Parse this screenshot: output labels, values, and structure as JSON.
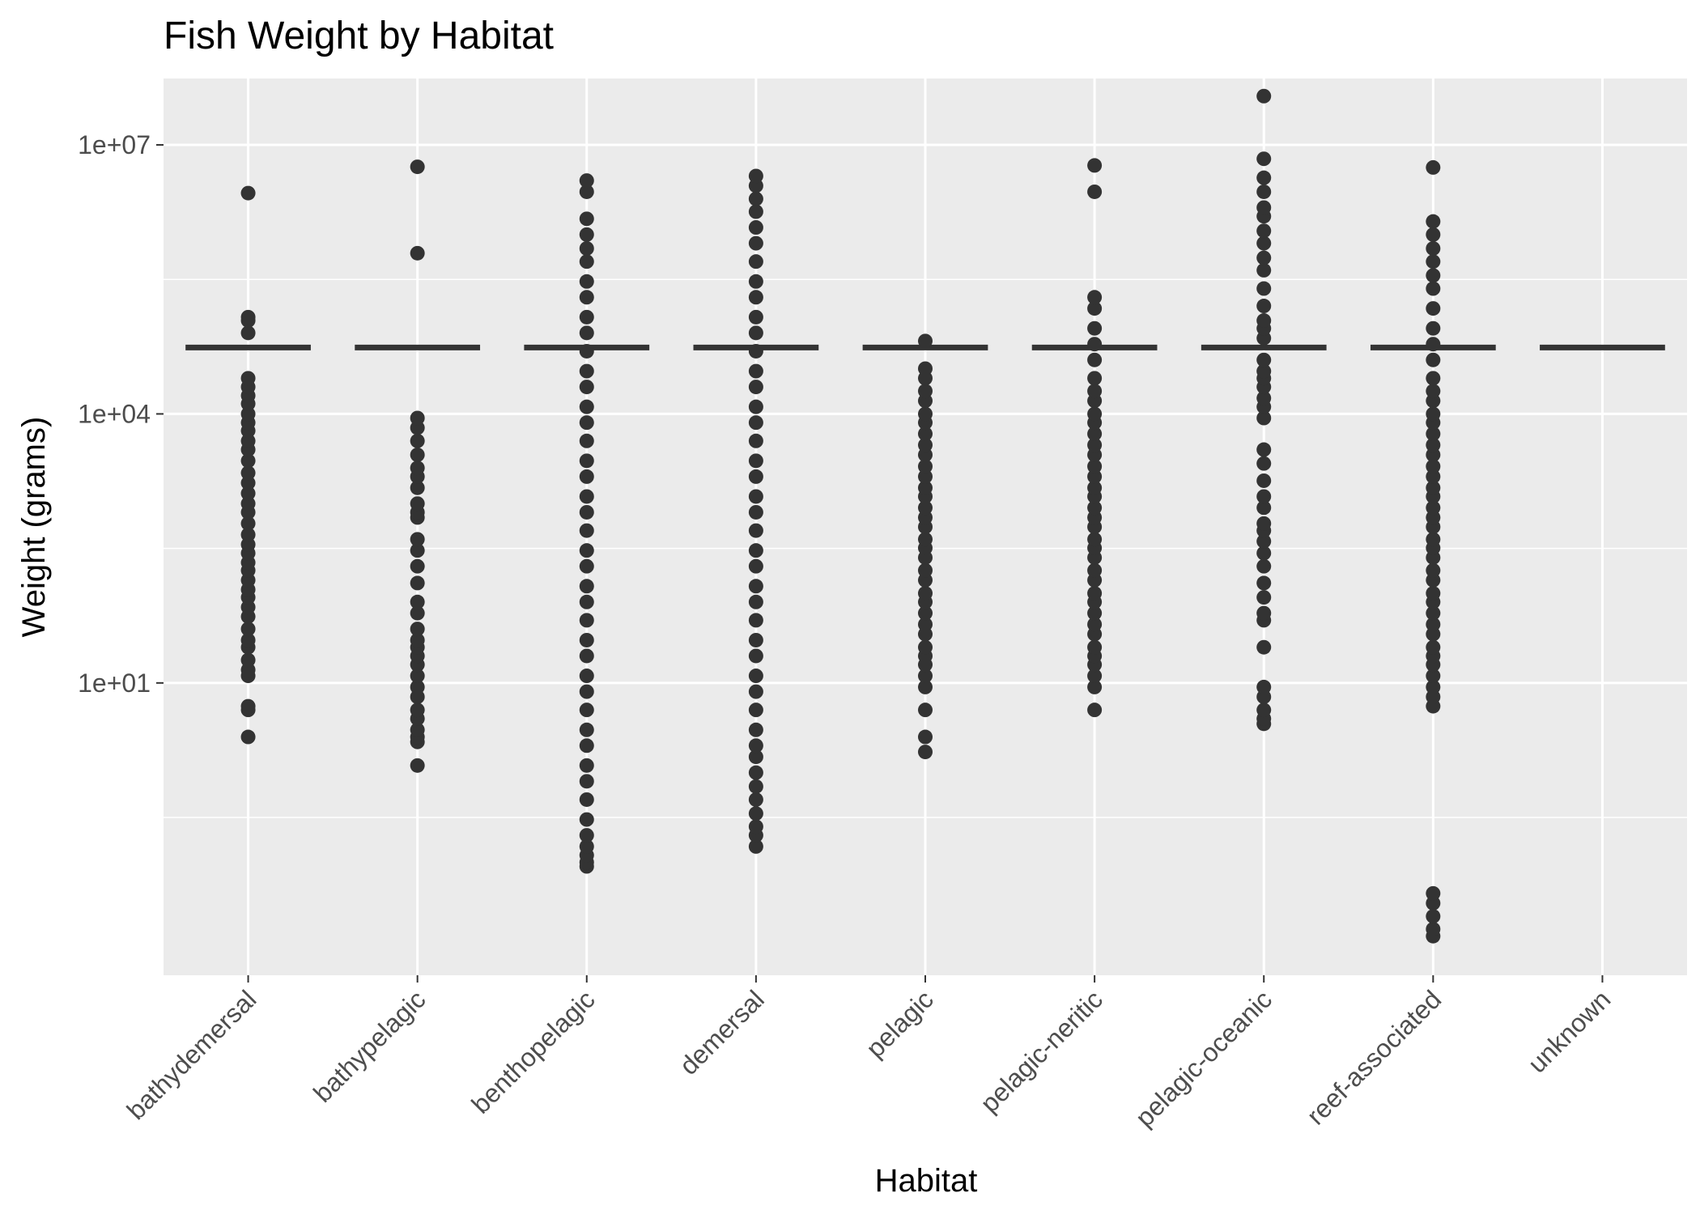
{
  "chart_data": {
    "type": "scatter",
    "title": "Fish Weight by Habitat",
    "xlabel": "Habitat",
    "ylabel": "Weight (grams)",
    "y_scale": "log10",
    "ylim": [
      0.0055,
      55000000
    ],
    "y_ticks": [
      {
        "value": 10,
        "label": "1e+01"
      },
      {
        "value": 10000,
        "label": "1e+04"
      },
      {
        "value": 10000000,
        "label": "1e+07"
      }
    ],
    "categories": [
      "bathydemersal",
      "bathypelagic",
      "benthopelagic",
      "demersal",
      "pelagic",
      "pelagic-neritic",
      "pelagic-oceanic",
      "reef-associated",
      "unknown"
    ],
    "crossbar_value": 55000,
    "grid": true,
    "legend": "none",
    "colors": {
      "panel": "#ebebeb",
      "grid": "#ffffff",
      "points": "#333333",
      "crossbar": "#333333"
    },
    "series": [
      {
        "category": "bathydemersal",
        "values": [
          2.5,
          5,
          5.5,
          12,
          14,
          18,
          25,
          30,
          40,
          55,
          70,
          90,
          110,
          140,
          180,
          220,
          280,
          350,
          450,
          600,
          800,
          1000,
          1300,
          1700,
          2200,
          3000,
          4000,
          5000,
          6500,
          8000,
          10000,
          13000,
          16000,
          20000,
          25000,
          80000,
          110000,
          120000,
          2900000
        ]
      },
      {
        "category": "bathypelagic",
        "values": [
          1.2,
          2.2,
          2.5,
          3,
          4,
          5,
          7,
          9,
          12,
          16,
          20,
          25,
          30,
          40,
          60,
          80,
          130,
          200,
          300,
          400,
          700,
          800,
          1000,
          1500,
          2000,
          2500,
          3500,
          5000,
          7000,
          9000,
          620000,
          5700000
        ]
      },
      {
        "category": "benthopelagic",
        "values": [
          0.09,
          0.1,
          0.12,
          0.15,
          0.2,
          0.3,
          0.5,
          0.8,
          1.2,
          2,
          3,
          5,
          8,
          12,
          20,
          30,
          50,
          80,
          120,
          200,
          300,
          500,
          800,
          1200,
          2000,
          3000,
          5000,
          8000,
          12000,
          20000,
          30000,
          50000,
          80000,
          120000,
          200000,
          300000,
          500000,
          700000,
          1000000,
          1500000,
          3000000,
          4000000
        ]
      },
      {
        "category": "demersal",
        "values": [
          0.15,
          0.2,
          0.25,
          0.35,
          0.5,
          0.7,
          1,
          1.5,
          2,
          3,
          5,
          8,
          12,
          20,
          30,
          50,
          80,
          120,
          200,
          300,
          500,
          800,
          1200,
          2000,
          3000,
          5000,
          8000,
          12000,
          20000,
          30000,
          50000,
          80000,
          120000,
          200000,
          300000,
          500000,
          800000,
          1200000,
          1800000,
          2500000,
          3500000,
          4500000
        ]
      },
      {
        "category": "pelagic",
        "values": [
          1.7,
          2.5,
          5,
          9,
          12,
          16,
          20,
          25,
          35,
          45,
          60,
          80,
          100,
          140,
          180,
          250,
          320,
          400,
          550,
          700,
          900,
          1200,
          1500,
          2000,
          2600,
          3500,
          4500,
          6000,
          8000,
          10000,
          14000,
          18000,
          25000,
          32000,
          65000
        ]
      },
      {
        "category": "pelagic-neritic",
        "values": [
          5,
          9,
          12,
          16,
          20,
          25,
          35,
          45,
          60,
          80,
          100,
          140,
          180,
          250,
          320,
          400,
          550,
          700,
          900,
          1200,
          1500,
          2000,
          2600,
          3500,
          4500,
          6000,
          8000,
          10000,
          14000,
          18000,
          25000,
          40000,
          60000,
          90000,
          150000,
          200000,
          3000000,
          5900000
        ]
      },
      {
        "category": "pelagic-oceanic",
        "values": [
          3.5,
          4,
          5,
          7,
          9,
          25,
          50,
          60,
          90,
          130,
          200,
          280,
          380,
          500,
          600,
          900,
          1200,
          1800,
          2800,
          4000,
          9000,
          12000,
          15000,
          20000,
          25000,
          30000,
          40000,
          70000,
          90000,
          110000,
          160000,
          250000,
          400000,
          550000,
          800000,
          1100000,
          1600000,
          2000000,
          3000000,
          4300000,
          7000000,
          35000000
        ]
      },
      {
        "category": "reef-associated",
        "values": [
          0.015,
          0.018,
          0.025,
          0.035,
          0.045,
          5.5,
          7,
          9,
          12,
          16,
          20,
          25,
          35,
          45,
          60,
          80,
          100,
          140,
          180,
          250,
          320,
          400,
          550,
          700,
          900,
          1200,
          1500,
          2000,
          2600,
          3500,
          4500,
          6000,
          8000,
          10000,
          14000,
          18000,
          25000,
          40000,
          60000,
          90000,
          150000,
          250000,
          350000,
          500000,
          700000,
          1000000,
          1400000,
          5600000
        ]
      },
      {
        "category": "unknown",
        "values": []
      }
    ]
  }
}
